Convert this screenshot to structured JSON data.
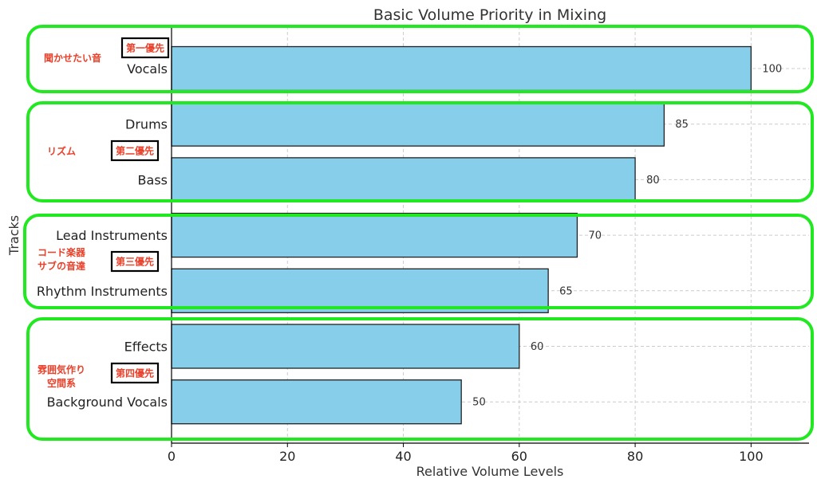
{
  "chart_data": {
    "type": "bar",
    "orientation": "horizontal",
    "title": "Basic Volume Priority in Mixing",
    "xlabel": "Relative Volume Levels",
    "ylabel": "Tracks",
    "xlim": [
      0,
      110
    ],
    "xticks": [
      0,
      20,
      40,
      60,
      80,
      100
    ],
    "grid": true,
    "categories": [
      "Vocals",
      "Drums",
      "Bass",
      "Lead Instruments",
      "Rhythm Instruments",
      "Effects",
      "Background Vocals"
    ],
    "values": [
      100,
      85,
      80,
      70,
      65,
      60,
      50
    ],
    "data_labels": [
      "100",
      "85",
      "80",
      "70",
      "65",
      "60",
      "50"
    ],
    "bar_color": "#87ceeb",
    "bar_edge_color": "#222222",
    "groups": [
      {
        "priority": "第一優先",
        "note": [
          "聞かせたい音"
        ],
        "members": [
          "Vocals"
        ],
        "border_color": "#22e822"
      },
      {
        "priority": "第二優先",
        "note": [
          "リズム"
        ],
        "members": [
          "Drums",
          "Bass"
        ],
        "border_color": "#22e822"
      },
      {
        "priority": "第三優先",
        "note": [
          "コード楽器",
          "サブの音達"
        ],
        "members": [
          "Lead Instruments",
          "Rhythm Instruments"
        ],
        "border_color": "#22e822"
      },
      {
        "priority": "第四優先",
        "note": [
          "雰囲気作り",
          "空間系"
        ],
        "members": [
          "Effects",
          "Background Vocals"
        ],
        "border_color": "#22e822"
      }
    ]
  }
}
